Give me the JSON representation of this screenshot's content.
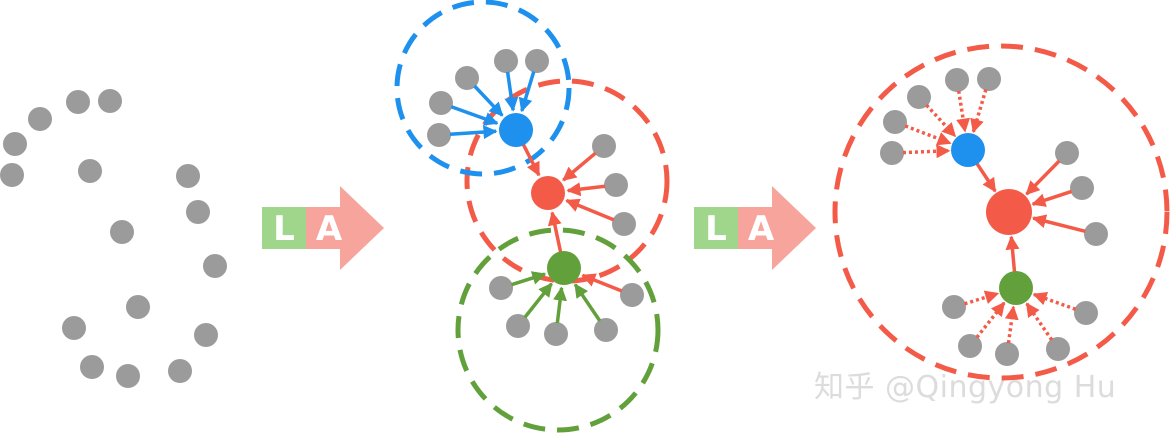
{
  "steps": [
    {
      "l_label": "L",
      "a_label": "A"
    },
    {
      "l_label": "L",
      "a_label": "A"
    }
  ],
  "watermark": "知乎 @Qingyong Hu",
  "colors": {
    "gray_node": "#9b9b9b",
    "blue": "#1e90ee",
    "red": "#f35b48",
    "green": "#62a03c",
    "l_block": "#9fd68b",
    "a_arrow": "#f7a49c"
  },
  "icons": {
    "arrow": "right-arrow-icon"
  }
}
